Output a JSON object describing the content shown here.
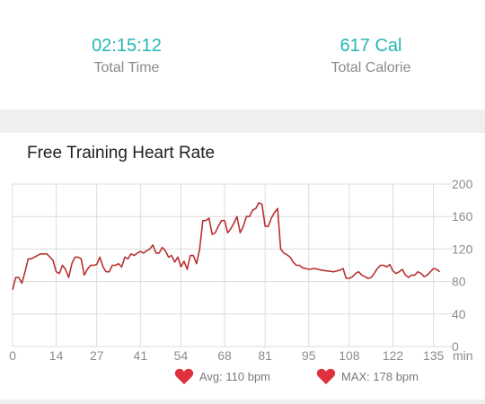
{
  "summary": {
    "total_time": {
      "value": "02:15:12",
      "label": "Total Time"
    },
    "total_calorie": {
      "value": "617 Cal",
      "label": "Total Calorie"
    }
  },
  "colors": {
    "accent": "#26b5b5",
    "heart_line": "#b83232",
    "heart_icon": "#e0303d",
    "grid": "#dcdcdc",
    "axis_text": "#8c8c8c"
  },
  "chart_card": {
    "title": "Free Training Heart Rate",
    "legend": {
      "avg": {
        "icon": "heart-icon",
        "text": "Avg: 110 bpm"
      },
      "max": {
        "icon": "heart-icon",
        "text": "MAX: 178 bpm"
      }
    }
  },
  "chart_data": {
    "type": "line",
    "title": "Free Training Heart Rate",
    "xlabel": "min",
    "ylabel": "",
    "xlim": [
      0,
      140
    ],
    "ylim": [
      0,
      200
    ],
    "x_ticks": [
      0,
      14,
      27,
      41,
      54,
      68,
      81,
      95,
      108,
      122,
      135
    ],
    "y_ticks": [
      0,
      40,
      80,
      120,
      160,
      200
    ],
    "grid": true,
    "series": [
      {
        "x": [
          0,
          1,
          2,
          3,
          4,
          5,
          6,
          7,
          9,
          11,
          13,
          14,
          15,
          16,
          17,
          18,
          19,
          20,
          21,
          22,
          23,
          24,
          25,
          26,
          27,
          28,
          29,
          30,
          31,
          32,
          33,
          34,
          35,
          36,
          37,
          38,
          39,
          40,
          41,
          42,
          43,
          44,
          45,
          46,
          47,
          48,
          49,
          50,
          51,
          52,
          53,
          54,
          55,
          56,
          57,
          58,
          59,
          60,
          61,
          62,
          63,
          64,
          65,
          66,
          67,
          68,
          69,
          70,
          71,
          72,
          73,
          74,
          75,
          76,
          77,
          78,
          79,
          80,
          81,
          82,
          83,
          84,
          85,
          86,
          87,
          88,
          89,
          90,
          91,
          92,
          93,
          95,
          97,
          99,
          101,
          103,
          105,
          106,
          107,
          108,
          109,
          110,
          111,
          112,
          113,
          114,
          115,
          116,
          117,
          118,
          119,
          120,
          121,
          122,
          123,
          124,
          125,
          126,
          127,
          128,
          129,
          130,
          131,
          132,
          133,
          134,
          135,
          136,
          137
        ],
        "y": [
          70,
          85,
          85,
          78,
          92,
          108,
          108,
          110,
          114,
          114,
          106,
          92,
          90,
          100,
          95,
          85,
          102,
          110,
          110,
          108,
          88,
          95,
          100,
          100,
          101,
          110,
          98,
          92,
          92,
          100,
          100,
          102,
          98,
          110,
          108,
          114,
          112,
          115,
          117,
          115,
          118,
          120,
          125,
          115,
          115,
          122,
          118,
          110,
          112,
          104,
          110,
          98,
          105,
          95,
          112,
          112,
          102,
          120,
          155,
          155,
          158,
          138,
          140,
          148,
          155,
          155,
          140,
          145,
          152,
          160,
          140,
          148,
          160,
          160,
          168,
          170,
          177,
          175,
          148,
          148,
          158,
          165,
          170,
          120,
          115,
          113,
          110,
          104,
          100,
          100,
          97,
          95,
          96,
          94,
          93,
          92,
          94,
          96,
          84,
          84,
          86,
          90,
          92,
          88,
          86,
          84,
          85,
          90,
          96,
          100,
          100,
          98,
          101,
          93,
          90,
          92,
          95,
          88,
          85,
          88,
          88,
          92,
          90,
          86,
          88,
          92,
          96,
          95,
          92
        ]
      }
    ]
  }
}
